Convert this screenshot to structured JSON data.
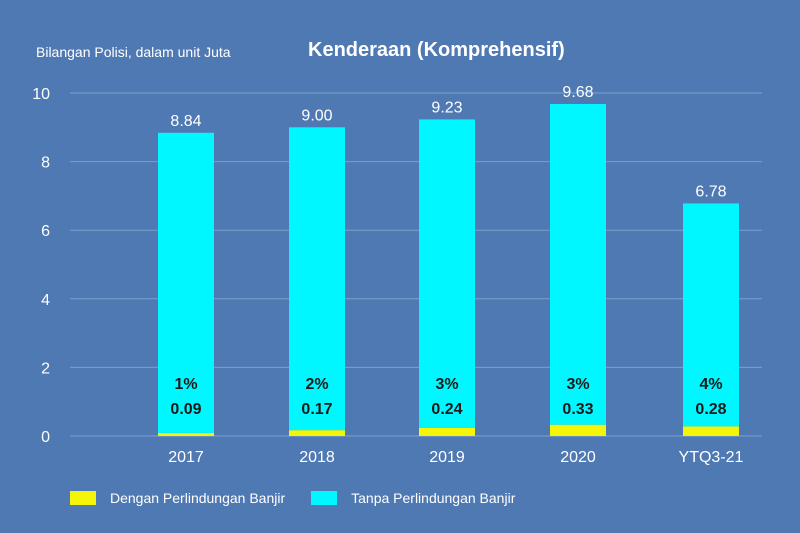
{
  "chart_data": {
    "type": "bar",
    "stacked": true,
    "title": "Kenderaan (Komprehensif)",
    "ylabel": "Bilangan Polisi, dalam unit Juta",
    "xlabel": "",
    "ylim": [
      0,
      10
    ],
    "yticks": [
      0,
      2,
      4,
      6,
      8,
      10
    ],
    "grid": true,
    "legend_position": "bottom",
    "categories": [
      "2017",
      "2018",
      "2019",
      "2020",
      "YTQ3-21"
    ],
    "series": [
      {
        "name": "Dengan Perlindungan Banjir",
        "color": "#f5f50a",
        "values": [
          0.09,
          0.17,
          0.24,
          0.33,
          0.28
        ],
        "percent_labels": [
          "1%",
          "2%",
          "3%",
          "3%",
          "4%"
        ],
        "value_labels": [
          "0.09",
          "0.17",
          "0.24",
          "0.33",
          "0.28"
        ]
      },
      {
        "name": "Tanpa Perlindungan Banjir",
        "color": "#00f7ff",
        "values": [
          8.75,
          8.83,
          8.99,
          9.35,
          6.5
        ]
      }
    ],
    "total_labels": [
      "8.84",
      "9.00",
      "9.23",
      "9.68",
      "6.78"
    ],
    "totals": [
      8.84,
      9.0,
      9.23,
      9.68,
      6.78
    ]
  },
  "colors": {
    "background": "#4f79b3",
    "grid": "#7f9fcc",
    "text": "#ffffff",
    "inner_label": "#1a1a1a"
  }
}
